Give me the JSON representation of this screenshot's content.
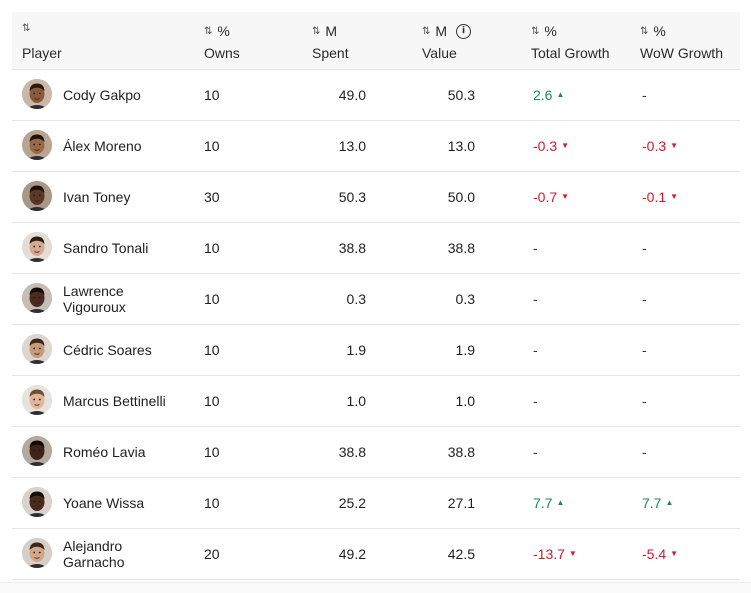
{
  "columns": {
    "player": {
      "top": "⇅",
      "label": "Player"
    },
    "owns": {
      "top": "%",
      "label": "Owns"
    },
    "spent": {
      "top": "M",
      "label": "Spent"
    },
    "value": {
      "top": "M",
      "label": "Value"
    },
    "total_growth": {
      "top": "%",
      "label": "Total Growth"
    },
    "wow_growth": {
      "top": "%",
      "label": "WoW Growth"
    }
  },
  "sort_glyph": "⇅",
  "info_glyph": "i",
  "colors": {
    "positive": "#1a8a5a",
    "negative": "#d8172f"
  },
  "rows": [
    {
      "name": "Cody Gakpo",
      "owns": "10",
      "spent": "49.0",
      "value": "50.3",
      "total": "2.6",
      "total_dir": "up",
      "wow": "-",
      "wow_dir": "none",
      "skin": "#8a5a3c",
      "hair": "#2a1a10",
      "bg": "#c9b8a8"
    },
    {
      "name": "Álex Moreno",
      "owns": "10",
      "spent": "13.0",
      "value": "13.0",
      "total": "-0.3",
      "total_dir": "down",
      "wow": "-0.3",
      "wow_dir": "down",
      "skin": "#9a6a48",
      "hair": "#1e140e",
      "bg": "#b9a48f"
    },
    {
      "name": "Ivan Toney",
      "owns": "30",
      "spent": "50.3",
      "value": "50.0",
      "total": "-0.7",
      "total_dir": "down",
      "wow": "-0.1",
      "wow_dir": "down",
      "skin": "#5a3826",
      "hair": "#1a0f0a",
      "bg": "#a89888"
    },
    {
      "name": "Sandro Tonali",
      "owns": "10",
      "spent": "38.8",
      "value": "38.8",
      "total": "-",
      "total_dir": "none",
      "wow": "-",
      "wow_dir": "none",
      "skin": "#d4ab90",
      "hair": "#2b1d14",
      "bg": "#e4ddd6"
    },
    {
      "name": "Lawrence Vigouroux",
      "owns": "10",
      "spent": "0.3",
      "value": "0.3",
      "total": "-",
      "total_dir": "none",
      "wow": "-",
      "wow_dir": "none",
      "skin": "#4a2c1e",
      "hair": "#140c08",
      "bg": "#c6bdb4"
    },
    {
      "name": "Cédric Soares",
      "owns": "10",
      "spent": "1.9",
      "value": "1.9",
      "total": "-",
      "total_dir": "none",
      "wow": "-",
      "wow_dir": "none",
      "skin": "#c49a78",
      "hair": "#3a2a1c",
      "bg": "#ddd6cf"
    },
    {
      "name": "Marcus Bettinelli",
      "owns": "10",
      "spent": "1.0",
      "value": "1.0",
      "total": "-",
      "total_dir": "none",
      "wow": "-",
      "wow_dir": "none",
      "skin": "#e0b69a",
      "hair": "#6a5038",
      "bg": "#e8e2dc"
    },
    {
      "name": "Roméo Lavia",
      "owns": "10",
      "spent": "38.8",
      "value": "38.8",
      "total": "-",
      "total_dir": "none",
      "wow": "-",
      "wow_dir": "none",
      "skin": "#3e2418",
      "hair": "#110906",
      "bg": "#b3a99f"
    },
    {
      "name": "Yoane Wissa",
      "owns": "10",
      "spent": "25.2",
      "value": "27.1",
      "total": "7.7",
      "total_dir": "up",
      "wow": "7.7",
      "wow_dir": "up",
      "skin": "#4a2a1c",
      "hair": "#160c08",
      "bg": "#d8d2cc"
    },
    {
      "name": "Alejandro Garnacho",
      "owns": "20",
      "spent": "49.2",
      "value": "42.5",
      "total": "-13.7",
      "total_dir": "down",
      "wow": "-5.4",
      "wow_dir": "down",
      "skin": "#d2a788",
      "hair": "#3a2616",
      "bg": "#d6cfc8"
    }
  ]
}
